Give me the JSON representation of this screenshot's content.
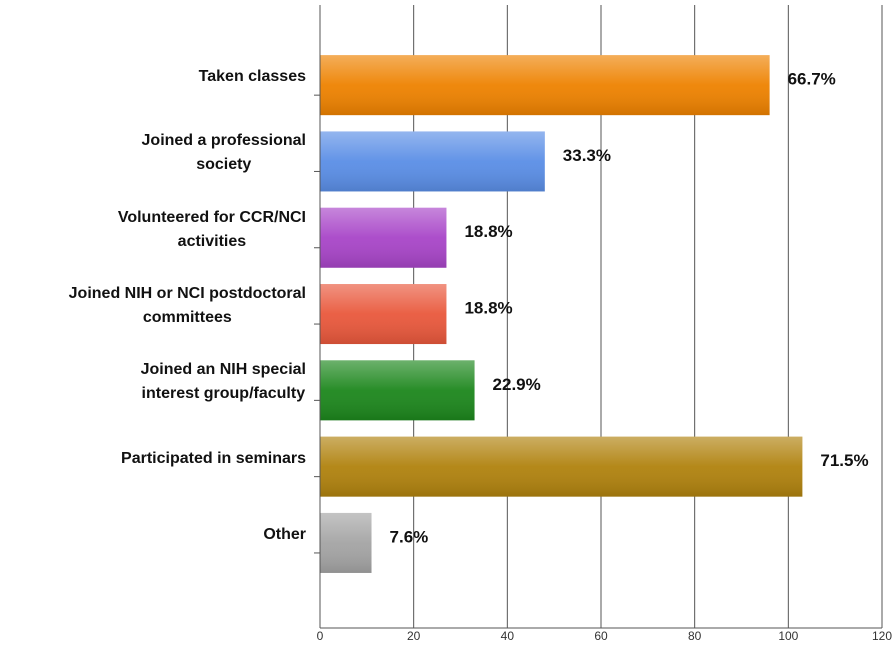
{
  "chart_data": {
    "type": "hbar",
    "categories": [
      "Taken classes",
      "Joined a professional\nsociety",
      "Volunteered for CCR/NCI\nactivities",
      "Joined NIH or NCI postdoctoral\ncommittees",
      "Joined an NIH special\ninterest group/faculty",
      "Participated in seminars",
      "Other"
    ],
    "values": [
      96,
      48,
      27,
      27,
      33,
      103,
      11
    ],
    "value_labels": [
      "66.7%",
      "33.3%",
      "18.8%",
      "18.8%",
      "22.9%",
      "71.5%",
      "7.6%"
    ],
    "colors": [
      "#ee8200",
      "#5a8ee6",
      "#a845c8",
      "#e9583c",
      "#1d871d",
      "#b0820e",
      "#a4a4a4"
    ],
    "xlim": [
      0,
      120
    ],
    "xticks": [
      0,
      20,
      40,
      60,
      80,
      100,
      120
    ],
    "grid": true
  }
}
